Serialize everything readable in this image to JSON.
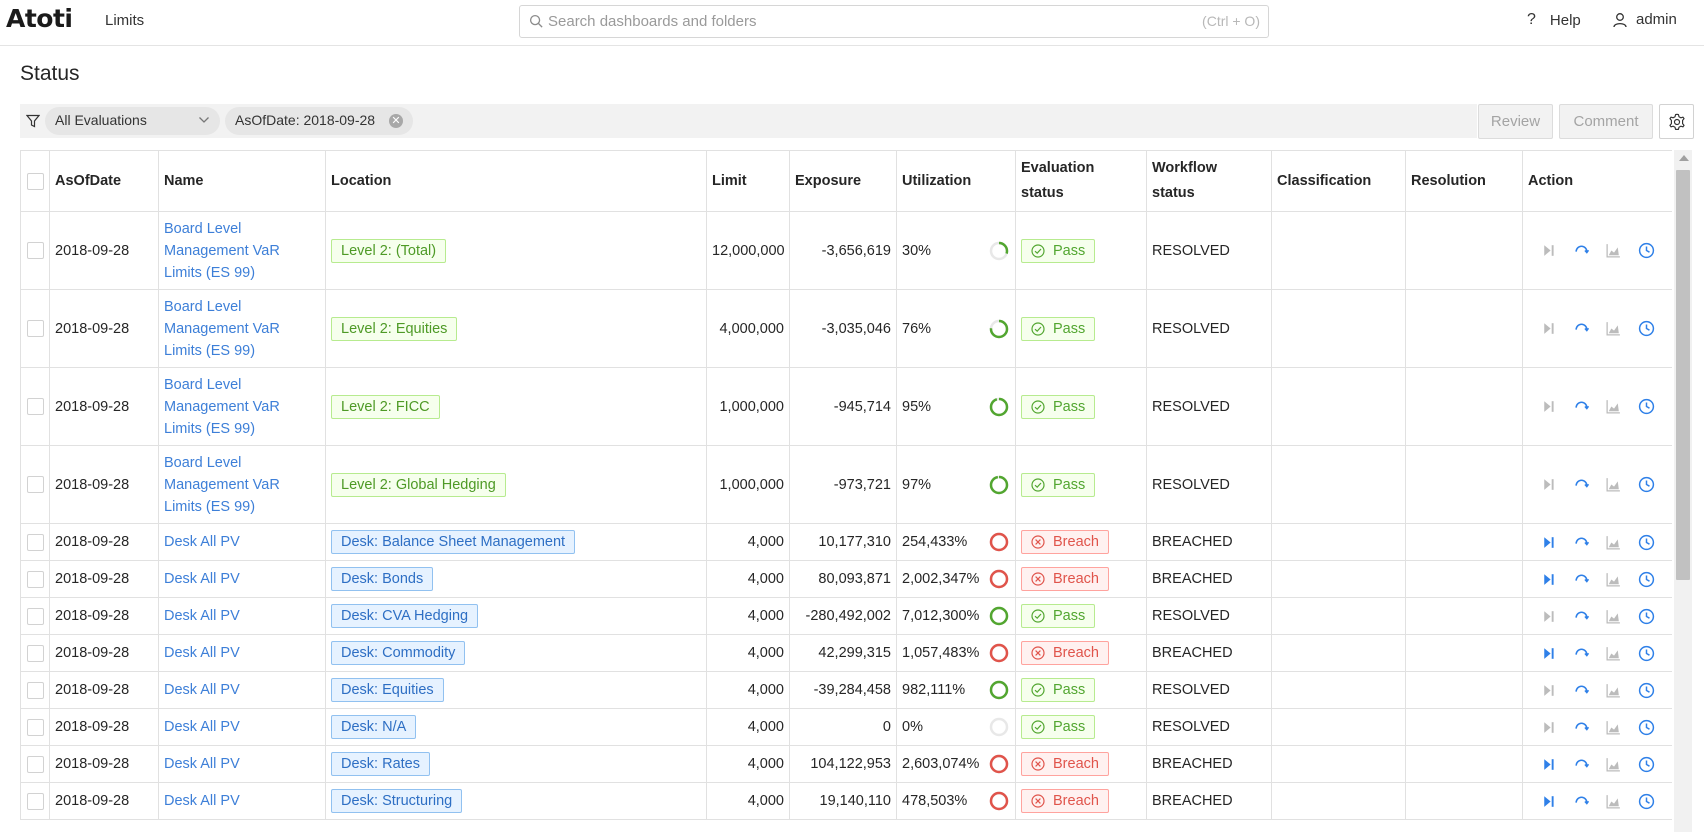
{
  "app": {
    "logo": "Atoti",
    "name": "Limits"
  },
  "search": {
    "placeholder": "Search dashboards and folders",
    "shortcut": "(Ctrl + O)"
  },
  "header": {
    "help_label": "Help",
    "user_label": "admin"
  },
  "page": {
    "title": "Status"
  },
  "filters": {
    "evaluation_select": "All Evaluations",
    "date_chip": "AsOfDate: 2018-09-28"
  },
  "toolbar": {
    "review_label": "Review",
    "comment_label": "Comment"
  },
  "table": {
    "columns": [
      "AsOfDate",
      "Name",
      "Location",
      "Limit",
      "Exposure",
      "Utilization",
      "Evaluation status",
      "Workflow status",
      "Classification",
      "Resolution",
      "Action"
    ],
    "column_lines": {
      "evaluation_status": [
        "Evaluation",
        "status"
      ],
      "workflow_status": [
        "Workflow",
        "status"
      ]
    },
    "rows": [
      {
        "date": "2018-09-28",
        "name_lines": [
          "Board Level",
          "Management VaR",
          "Limits (ES 99)"
        ],
        "location": "Level 2: (Total)",
        "loc_type": "lvl",
        "limit": "12,000,000",
        "exposure": "-3,656,619",
        "util": "30%",
        "util_value": 30,
        "eval": "Pass",
        "workflow": "RESOLVED",
        "classification": "",
        "resolution": ""
      },
      {
        "date": "2018-09-28",
        "name_lines": [
          "Board Level",
          "Management VaR",
          "Limits (ES 99)"
        ],
        "location": "Level 2: Equities",
        "loc_type": "lvl",
        "limit": "4,000,000",
        "exposure": "-3,035,046",
        "util": "76%",
        "util_value": 76,
        "eval": "Pass",
        "workflow": "RESOLVED",
        "classification": "",
        "resolution": ""
      },
      {
        "date": "2018-09-28",
        "name_lines": [
          "Board Level",
          "Management VaR",
          "Limits (ES 99)"
        ],
        "location": "Level 2: FICC",
        "loc_type": "lvl",
        "limit": "1,000,000",
        "exposure": "-945,714",
        "util": "95%",
        "util_value": 95,
        "eval": "Pass",
        "workflow": "RESOLVED",
        "classification": "",
        "resolution": ""
      },
      {
        "date": "2018-09-28",
        "name_lines": [
          "Board Level",
          "Management VaR",
          "Limits (ES 99)"
        ],
        "location": "Level 2: Global Hedging",
        "loc_type": "lvl",
        "limit": "1,000,000",
        "exposure": "-973,721",
        "util": "97%",
        "util_value": 97,
        "eval": "Pass",
        "workflow": "RESOLVED",
        "classification": "",
        "resolution": ""
      },
      {
        "date": "2018-09-28",
        "name_lines": [
          "Desk All PV"
        ],
        "location": "Desk: Balance Sheet Management",
        "loc_type": "desk",
        "limit": "4,000",
        "exposure": "10,177,310",
        "util": "254,433%",
        "util_value": 100,
        "eval": "Breach",
        "workflow": "BREACHED",
        "classification": "",
        "resolution": ""
      },
      {
        "date": "2018-09-28",
        "name_lines": [
          "Desk All PV"
        ],
        "location": "Desk: Bonds",
        "loc_type": "desk",
        "limit": "4,000",
        "exposure": "80,093,871",
        "util": "2,002,347%",
        "util_value": 100,
        "eval": "Breach",
        "workflow": "BREACHED",
        "classification": "",
        "resolution": ""
      },
      {
        "date": "2018-09-28",
        "name_lines": [
          "Desk All PV"
        ],
        "location": "Desk: CVA Hedging",
        "loc_type": "desk",
        "limit": "4,000",
        "exposure": "-280,492,002",
        "util": "7,012,300%",
        "util_value": 100,
        "eval": "Pass",
        "workflow": "RESOLVED",
        "classification": "",
        "resolution": ""
      },
      {
        "date": "2018-09-28",
        "name_lines": [
          "Desk All PV"
        ],
        "location": "Desk: Commodity",
        "loc_type": "desk",
        "limit": "4,000",
        "exposure": "42,299,315",
        "util": "1,057,483%",
        "util_value": 100,
        "eval": "Breach",
        "workflow": "BREACHED",
        "classification": "",
        "resolution": ""
      },
      {
        "date": "2018-09-28",
        "name_lines": [
          "Desk All PV"
        ],
        "location": "Desk: Equities",
        "loc_type": "desk",
        "limit": "4,000",
        "exposure": "-39,284,458",
        "util": "982,111%",
        "util_value": 100,
        "eval": "Pass",
        "workflow": "RESOLVED",
        "classification": "",
        "resolution": ""
      },
      {
        "date": "2018-09-28",
        "name_lines": [
          "Desk All PV"
        ],
        "location": "Desk: N/A",
        "loc_type": "desk",
        "limit": "4,000",
        "exposure": "0",
        "util": "0%",
        "util_value": 0,
        "eval": "Pass",
        "workflow": "RESOLVED",
        "classification": "",
        "resolution": ""
      },
      {
        "date": "2018-09-28",
        "name_lines": [
          "Desk All PV"
        ],
        "location": "Desk: Rates",
        "loc_type": "desk",
        "limit": "4,000",
        "exposure": "104,122,953",
        "util": "2,603,074%",
        "util_value": 100,
        "eval": "Breach",
        "workflow": "BREACHED",
        "classification": "",
        "resolution": ""
      },
      {
        "date": "2018-09-28",
        "name_lines": [
          "Desk All PV"
        ],
        "location": "Desk: Structuring",
        "loc_type": "desk",
        "limit": "4,000",
        "exposure": "19,140,110",
        "util": "478,503%",
        "util_value": 100,
        "eval": "Breach",
        "workflow": "BREACHED",
        "classification": "",
        "resolution": ""
      }
    ]
  },
  "colors": {
    "link": "#3d7fd8",
    "pass": "#52a630",
    "breach": "#e0544b",
    "action_icon": "#2f80e8",
    "action_icon_disabled": "#bcbcbc",
    "ring_track": "#e8e8e8"
  },
  "icons": [
    "search-icon",
    "help-icon",
    "user-icon",
    "filter-icon",
    "chevron-down-icon",
    "clear-icon",
    "gear-icon",
    "check-circle-icon",
    "close-circle-icon",
    "step-forward-icon",
    "refresh-icon",
    "area-chart-icon",
    "clock-icon"
  ]
}
